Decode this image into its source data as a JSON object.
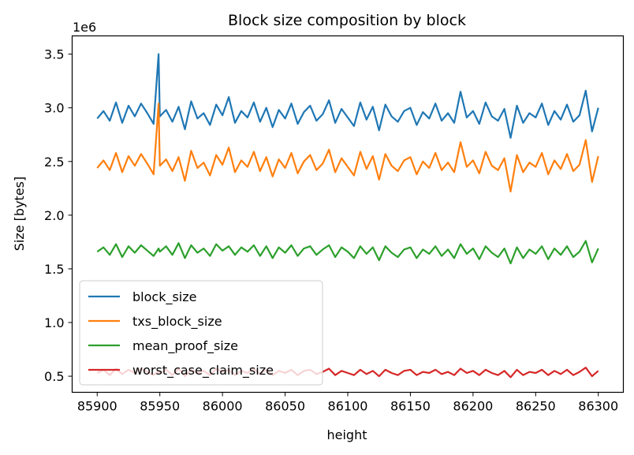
{
  "chart_data": {
    "type": "line",
    "title": "Block size composition by block",
    "xlabel": "height",
    "ylabel": "Size [bytes]",
    "y_multiplier_label": "1e6",
    "xlim": [
      85880,
      85920
    ],
    "ylim": [
      0.35,
      3.67
    ],
    "x_ticks": [
      85900,
      85950,
      86000,
      86050,
      86100,
      86150,
      86200,
      86250,
      86300
    ],
    "x_tick_labels": [
      "85900",
      "85950",
      "86000",
      "86050",
      "86100",
      "86150",
      "86200",
      "86250",
      "86300"
    ],
    "y_ticks": [
      0.5,
      1.0,
      1.5,
      2.0,
      2.5,
      3.0,
      3.5
    ],
    "y_tick_labels": [
      "0.5",
      "1.0",
      "1.5",
      "2.0",
      "2.5",
      "3.0",
      "3.5"
    ],
    "legend_position": "lower-left",
    "grid": false,
    "x": [
      85900,
      85905,
      85910,
      85915,
      85920,
      85925,
      85930,
      85935,
      85940,
      85945,
      85949,
      85950,
      85955,
      85960,
      85965,
      85970,
      85975,
      85980,
      85985,
      85990,
      85995,
      86000,
      86005,
      86010,
      86015,
      86020,
      86025,
      86030,
      86035,
      86040,
      86045,
      86050,
      86055,
      86060,
      86065,
      86070,
      86075,
      86080,
      86085,
      86090,
      86095,
      86100,
      86105,
      86110,
      86115,
      86120,
      86125,
      86130,
      86135,
      86140,
      86145,
      86150,
      86155,
      86160,
      86165,
      86170,
      86175,
      86180,
      86185,
      86190,
      86195,
      86200,
      86205,
      86210,
      86215,
      86220,
      86225,
      86230,
      86235,
      86240,
      86245,
      86250,
      86255,
      86260,
      86265,
      86270,
      86275,
      86280,
      86285,
      86290,
      86295,
      86300
    ],
    "series": [
      {
        "name": "block_size",
        "color": "#1f77b4",
        "values": [
          2.9,
          2.97,
          2.88,
          3.05,
          2.86,
          3.02,
          2.92,
          3.04,
          2.95,
          2.85,
          3.5,
          2.92,
          2.98,
          2.87,
          3.01,
          2.8,
          3.06,
          2.9,
          2.95,
          2.84,
          3.03,
          2.93,
          3.1,
          2.86,
          2.97,
          2.91,
          3.05,
          2.87,
          3.0,
          2.82,
          2.98,
          2.9,
          3.04,
          2.85,
          2.96,
          3.02,
          2.88,
          2.94,
          3.07,
          2.86,
          2.99,
          2.91,
          2.83,
          3.05,
          2.89,
          3.01,
          2.79,
          3.03,
          2.92,
          2.87,
          2.97,
          3.0,
          2.84,
          2.96,
          2.9,
          3.04,
          2.88,
          2.95,
          2.86,
          3.15,
          2.91,
          2.97,
          2.85,
          3.05,
          2.92,
          2.88,
          2.99,
          2.72,
          3.02,
          2.86,
          2.95,
          2.91,
          3.04,
          2.84,
          2.97,
          2.89,
          3.03,
          2.87,
          2.93,
          3.16,
          2.78,
          3.0
        ]
      },
      {
        "name": "txs_block_size",
        "color": "#ff7f0e",
        "values": [
          2.44,
          2.51,
          2.42,
          2.58,
          2.4,
          2.55,
          2.46,
          2.57,
          2.48,
          2.38,
          3.04,
          2.46,
          2.52,
          2.41,
          2.54,
          2.32,
          2.6,
          2.44,
          2.49,
          2.37,
          2.56,
          2.47,
          2.63,
          2.4,
          2.51,
          2.45,
          2.59,
          2.41,
          2.54,
          2.36,
          2.52,
          2.44,
          2.58,
          2.39,
          2.5,
          2.56,
          2.42,
          2.48,
          2.61,
          2.4,
          2.53,
          2.45,
          2.37,
          2.59,
          2.43,
          2.55,
          2.33,
          2.57,
          2.46,
          2.41,
          2.51,
          2.54,
          2.38,
          2.5,
          2.44,
          2.58,
          2.42,
          2.49,
          2.4,
          2.68,
          2.45,
          2.51,
          2.39,
          2.59,
          2.46,
          2.42,
          2.53,
          2.22,
          2.56,
          2.4,
          2.49,
          2.45,
          2.58,
          2.38,
          2.51,
          2.43,
          2.57,
          2.41,
          2.47,
          2.7,
          2.31,
          2.55
        ]
      },
      {
        "name": "mean_proof_size",
        "color": "#2ca02c",
        "values": [
          1.66,
          1.7,
          1.63,
          1.73,
          1.61,
          1.71,
          1.65,
          1.72,
          1.67,
          1.62,
          1.69,
          1.66,
          1.71,
          1.63,
          1.74,
          1.6,
          1.72,
          1.65,
          1.69,
          1.62,
          1.73,
          1.67,
          1.71,
          1.63,
          1.7,
          1.66,
          1.72,
          1.62,
          1.71,
          1.6,
          1.7,
          1.65,
          1.72,
          1.62,
          1.69,
          1.71,
          1.63,
          1.68,
          1.72,
          1.61,
          1.7,
          1.66,
          1.6,
          1.71,
          1.64,
          1.7,
          1.58,
          1.71,
          1.65,
          1.61,
          1.68,
          1.7,
          1.6,
          1.68,
          1.64,
          1.71,
          1.62,
          1.68,
          1.6,
          1.73,
          1.64,
          1.69,
          1.59,
          1.71,
          1.65,
          1.61,
          1.69,
          1.55,
          1.7,
          1.6,
          1.68,
          1.64,
          1.71,
          1.59,
          1.69,
          1.63,
          1.71,
          1.61,
          1.66,
          1.76,
          1.56,
          1.69
        ]
      },
      {
        "name": "worst_case_claim_size",
        "color": "#d62728",
        "values": [
          0.53,
          0.56,
          0.51,
          0.57,
          0.52,
          0.56,
          0.53,
          0.57,
          0.54,
          0.51,
          0.55,
          0.53,
          0.56,
          0.51,
          0.57,
          0.5,
          0.56,
          0.53,
          0.55,
          0.51,
          0.57,
          0.54,
          0.56,
          0.51,
          0.55,
          0.53,
          0.57,
          0.52,
          0.56,
          0.51,
          0.55,
          0.53,
          0.56,
          0.51,
          0.55,
          0.56,
          0.52,
          0.54,
          0.57,
          0.51,
          0.55,
          0.53,
          0.51,
          0.56,
          0.52,
          0.55,
          0.5,
          0.56,
          0.53,
          0.51,
          0.55,
          0.56,
          0.51,
          0.54,
          0.53,
          0.56,
          0.52,
          0.54,
          0.51,
          0.57,
          0.53,
          0.55,
          0.51,
          0.56,
          0.53,
          0.51,
          0.55,
          0.49,
          0.56,
          0.51,
          0.54,
          0.53,
          0.56,
          0.51,
          0.55,
          0.52,
          0.56,
          0.51,
          0.54,
          0.58,
          0.5,
          0.55
        ]
      }
    ]
  }
}
